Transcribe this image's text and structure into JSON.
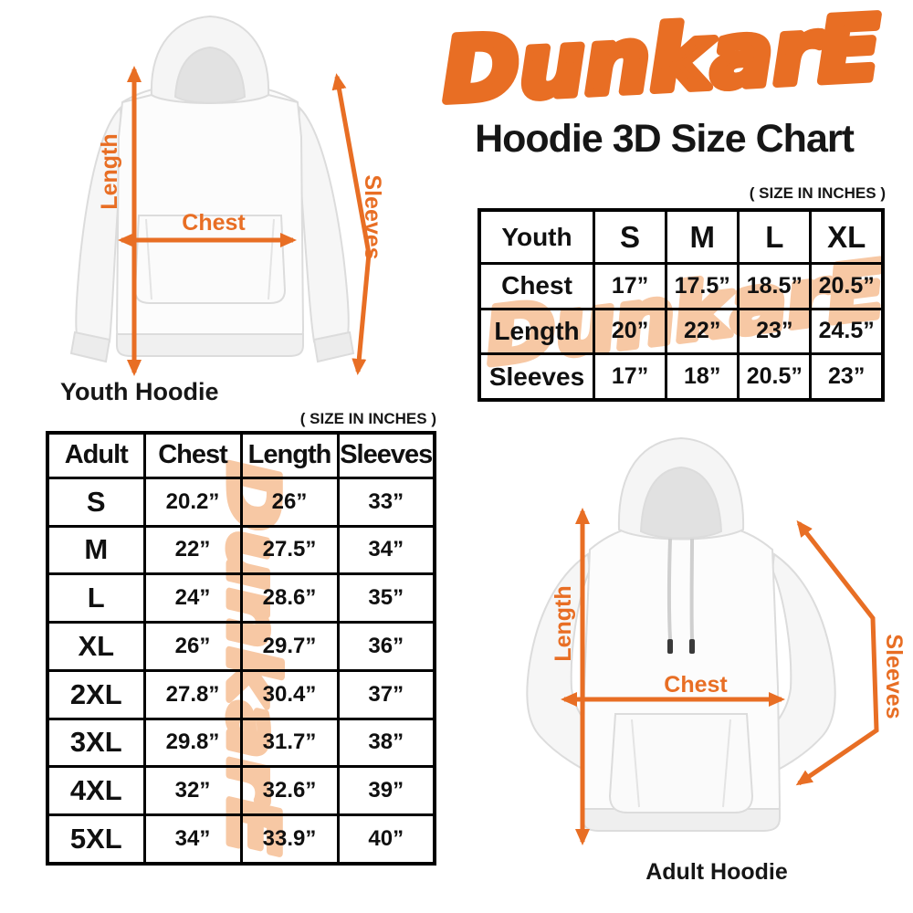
{
  "brand": {
    "logo_text": "DunkarE"
  },
  "title": "Hoodie 3D Size Chart",
  "colors": {
    "accent": "#E86E24",
    "watermark": "#F7C8A4",
    "text": "#161616",
    "table_border": "#000000"
  },
  "figures": {
    "youth": {
      "caption": "Youth Hoodie",
      "measure_labels": {
        "length": "Length",
        "chest": "Chest",
        "sleeves": "Sleeves"
      }
    },
    "adult": {
      "caption": "Adult Hoodie",
      "measure_labels": {
        "length": "Length",
        "chest": "Chest",
        "sleeves": "Sleeves"
      }
    }
  },
  "tables": {
    "youth": {
      "units_note": "( SIZE IN INCHES )"
    },
    "adult": {
      "units_note": "( SIZE IN INCHES )"
    }
  },
  "chart_data": [
    {
      "type": "table",
      "name": "Youth hoodie sizes",
      "unit": "inches",
      "headers": [
        "Youth",
        "S",
        "M",
        "L",
        "XL"
      ],
      "rows": [
        [
          "Chest",
          "17”",
          "17.5”",
          "18.5”",
          "20.5”"
        ],
        [
          "Length",
          "20”",
          "22”",
          "23”",
          "24.5”"
        ],
        [
          "Sleeves",
          "17”",
          "18”",
          "20.5”",
          "23”"
        ]
      ]
    },
    {
      "type": "table",
      "name": "Adult hoodie sizes",
      "unit": "inches",
      "headers": [
        "Adult",
        "Chest",
        "Length",
        "Sleeves"
      ],
      "rows": [
        [
          "S",
          "20.2”",
          "26”",
          "33”"
        ],
        [
          "M",
          "22”",
          "27.5”",
          "34”"
        ],
        [
          "L",
          "24”",
          "28.6”",
          "35”"
        ],
        [
          "XL",
          "26”",
          "29.7”",
          "36”"
        ],
        [
          "2XL",
          "27.8”",
          "30.4”",
          "37”"
        ],
        [
          "3XL",
          "29.8”",
          "31.7”",
          "38”"
        ],
        [
          "4XL",
          "32”",
          "32.6”",
          "39”"
        ],
        [
          "5XL",
          "34”",
          "33.9”",
          "40”"
        ]
      ]
    }
  ]
}
